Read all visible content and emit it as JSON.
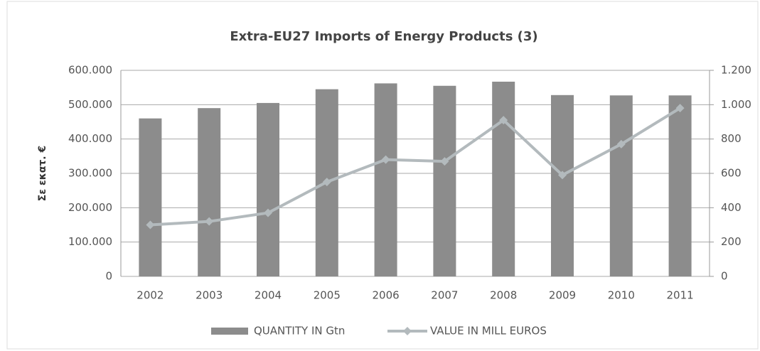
{
  "chart_data": {
    "type": "combo",
    "title": "Extra-EU27 Imports of Energy Products (3)",
    "y_label": "Σε εκατ. €",
    "categories": [
      "2002",
      "2003",
      "2004",
      "2005",
      "2006",
      "2007",
      "2008",
      "2009",
      "2010",
      "2011"
    ],
    "series": [
      {
        "name": "QUANTITY IN Gtn",
        "type": "bar",
        "color": "#8c8c8c",
        "axis": "y",
        "values": [
          460000,
          490000,
          505000,
          545000,
          562000,
          555000,
          567000,
          528000,
          527000,
          527000
        ]
      },
      {
        "name": "VALUE IN MILL EUROS",
        "type": "line",
        "color": "#b3babd",
        "axis": "y2",
        "values": [
          300,
          320,
          370,
          550,
          680,
          670,
          910,
          590,
          770,
          980
        ]
      }
    ],
    "ylim": [
      0,
      600000
    ],
    "yticks": [
      0,
      {
        "value": 100000,
        "label": "100.000"
      },
      {
        "value": 200000,
        "label": "200.000"
      },
      {
        "value": 300000,
        "label": "300.000"
      },
      {
        "value": 400000,
        "label": "400.000"
      },
      {
        "value": 500000,
        "label": "500.000"
      },
      {
        "value": 600000,
        "label": "600.000"
      }
    ],
    "y2lim": [
      0,
      1200
    ],
    "y2ticks": [
      0,
      200,
      400,
      600,
      800,
      {
        "value": 1000,
        "label": "1.000"
      },
      {
        "value": 1200,
        "label": "1.200"
      }
    ],
    "grid": true,
    "legend": "bottom"
  }
}
